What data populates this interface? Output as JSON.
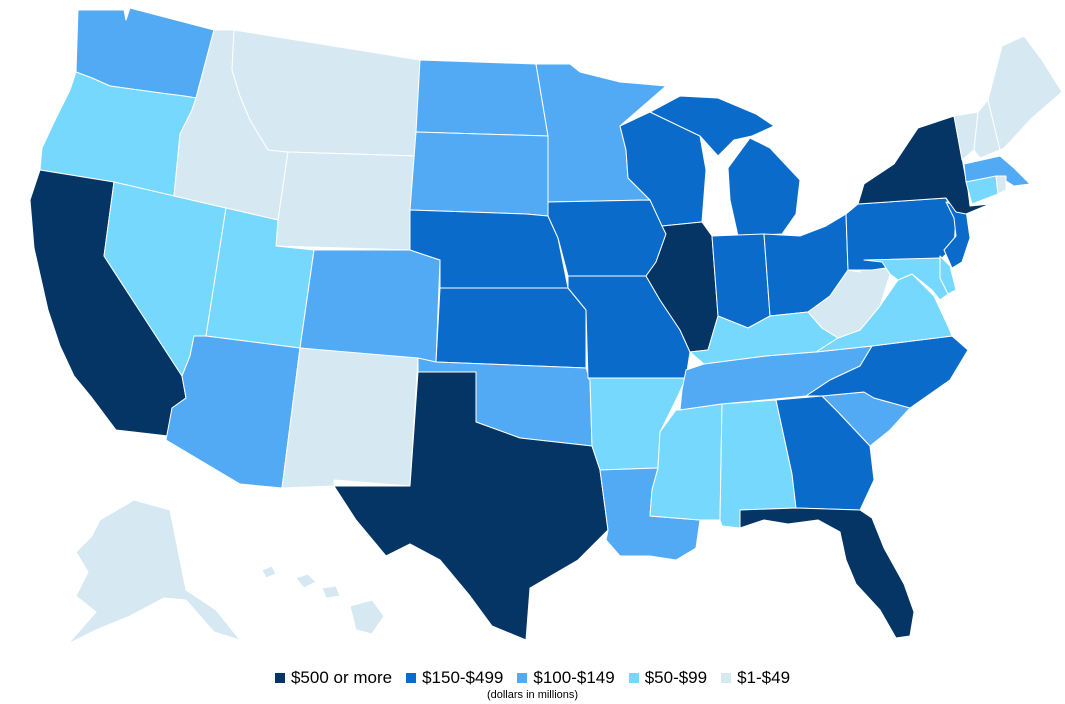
{
  "legend": {
    "items": [
      {
        "label": "$500 or more",
        "color": "#043565"
      },
      {
        "label": "$150-$499",
        "color": "#0b6bcb"
      },
      {
        "label": "$100-$149",
        "color": "#52aaf5"
      },
      {
        "label": "$50-$99",
        "color": "#75d8fc"
      },
      {
        "label": "$1-$49",
        "color": "#d6e8f2"
      }
    ],
    "note": "(dollars in millions)"
  },
  "states": {
    "WA": "$100-$149",
    "OR": "$50-$99",
    "CA": "$500 or more",
    "NV": "$50-$99",
    "ID": "$1-$49",
    "MT": "$1-$49",
    "WY": "$1-$49",
    "UT": "$50-$99",
    "AZ": "$100-$149",
    "CO": "$100-$149",
    "NM": "$1-$49",
    "ND": "$100-$149",
    "SD": "$100-$149",
    "NE": "$150-$499",
    "KS": "$150-$499",
    "OK": "$100-$149",
    "TX": "$500 or more",
    "MN": "$100-$149",
    "IA": "$150-$499",
    "MO": "$150-$499",
    "AR": "$50-$99",
    "LA": "$100-$149",
    "WI": "$150-$499",
    "IL": "$500 or more",
    "MI": "$150-$499",
    "IN": "$150-$499",
    "OH": "$150-$499",
    "KY": "$50-$99",
    "TN": "$100-$149",
    "MS": "$50-$99",
    "AL": "$50-$99",
    "GA": "$150-$499",
    "FL": "$500 or more",
    "SC": "$100-$149",
    "NC": "$150-$499",
    "VA": "$50-$99",
    "WV": "$1-$49",
    "PA": "$150-$499",
    "NY": "$500 or more",
    "NJ": "$150-$499",
    "DE": "$50-$99",
    "MD": "$50-$99",
    "CT": "$50-$99",
    "RI": "$1-$49",
    "MA": "$100-$149",
    "VT": "$1-$49",
    "NH": "$1-$49",
    "ME": "$1-$49",
    "AK": "$1-$49",
    "HI": "$1-$49"
  }
}
